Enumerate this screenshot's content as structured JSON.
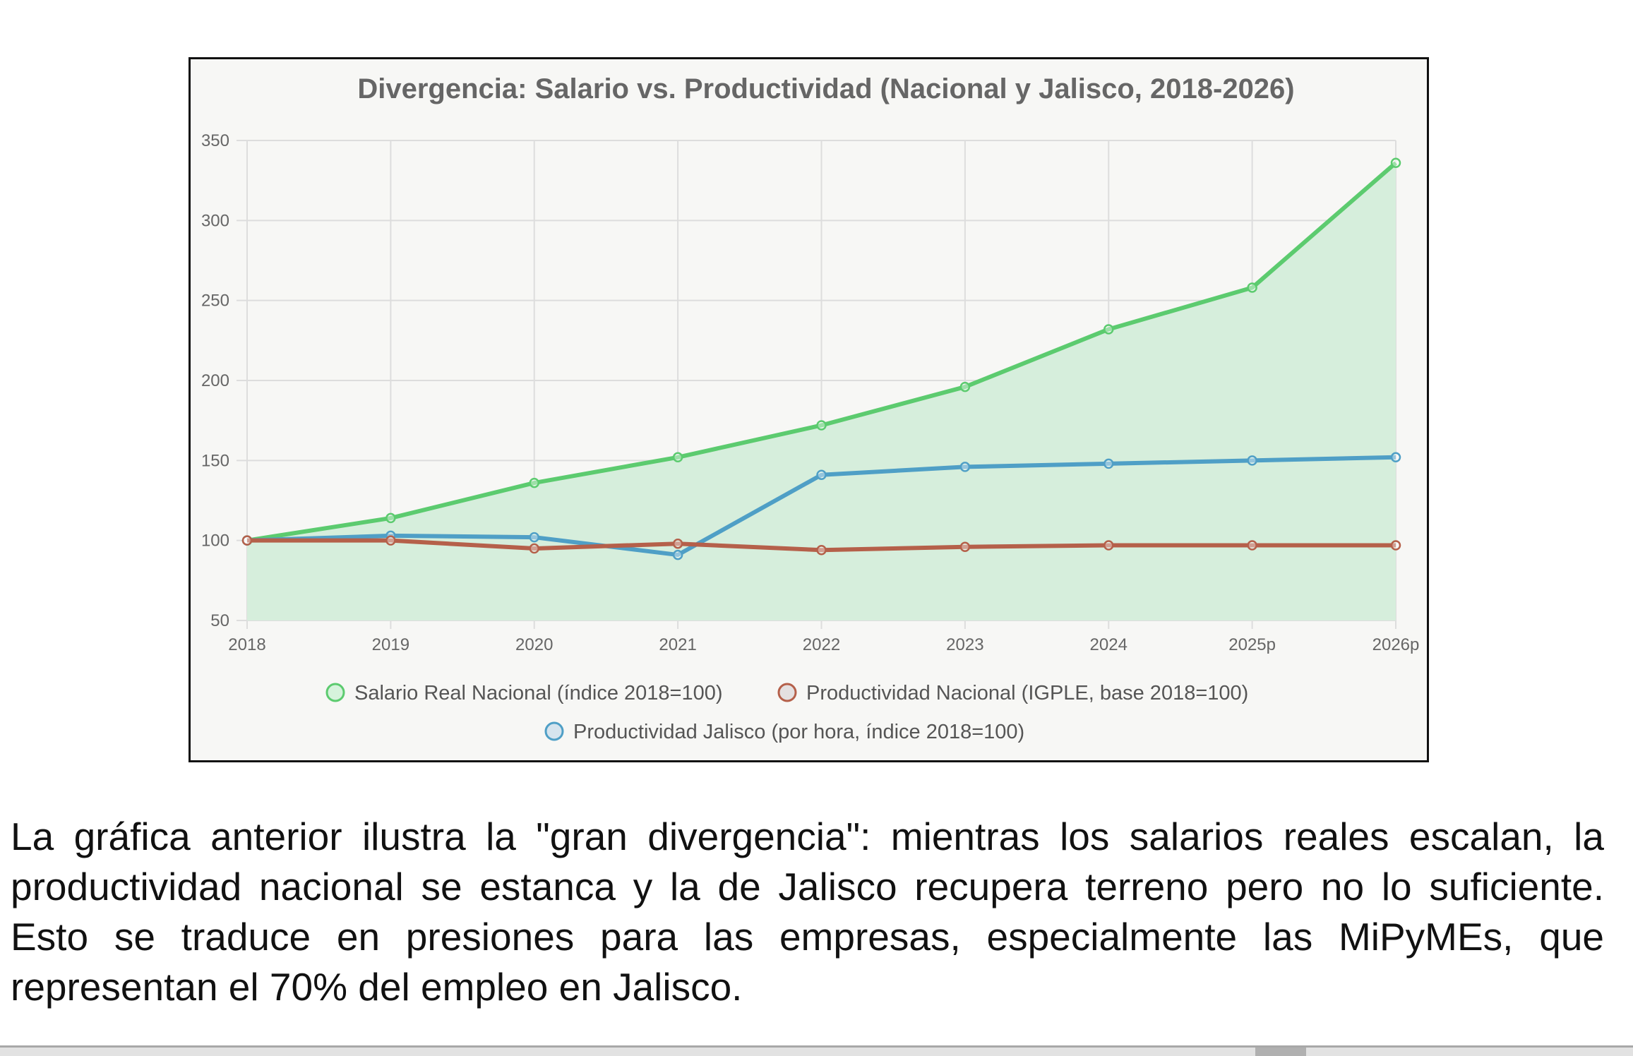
{
  "chart_data": {
    "type": "line",
    "title": "Divergencia: Salario vs. Productividad (Nacional y Jalisco, 2018-2026)",
    "categories": [
      "2018",
      "2019",
      "2020",
      "2021",
      "2022",
      "2023",
      "2024",
      "2025p",
      "2026p"
    ],
    "ylim": [
      50,
      350
    ],
    "yticks": [
      50,
      100,
      150,
      200,
      250,
      300,
      350
    ],
    "grid": true,
    "legend_position": "bottom",
    "series": [
      {
        "name": "Salario Real Nacional (índice 2018=100)",
        "color": "#5ccb6f",
        "fill": "#d6eedc",
        "values": [
          100,
          114,
          136,
          152,
          172,
          196,
          232,
          258,
          336
        ]
      },
      {
        "name": "Productividad Nacional (IGPLE, base 2018=100)",
        "color": "#b5604a",
        "values": [
          100,
          100,
          95,
          98,
          94,
          96,
          97,
          97,
          97
        ]
      },
      {
        "name": "Productividad Jalisco (por hora, índice 2018=100)",
        "color": "#4f9fc6",
        "values": [
          100,
          103,
          102,
          91,
          141,
          146,
          148,
          150,
          152
        ]
      }
    ]
  },
  "paragraph": "La gráfica anterior ilustra la \"gran divergencia\": mientras los salarios reales escalan, la productividad nacional se estanca y la de Jalisco recupera terreno pero no lo suficiente. Esto se traduce en presiones para las empresas, especialmente las MiPyMEs, que representan el 70% del empleo en Jalisco."
}
